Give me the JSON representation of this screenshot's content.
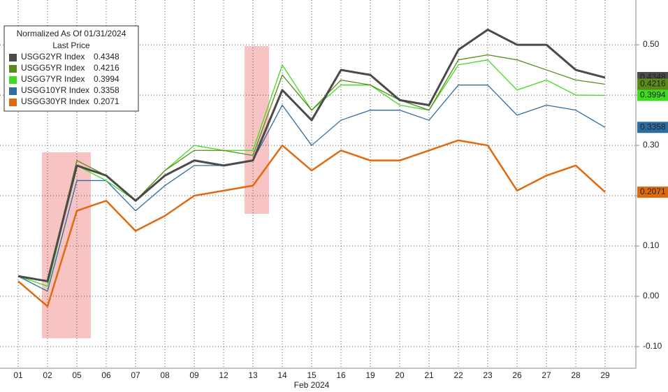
{
  "chart_data": {
    "type": "line",
    "legend_title": "Normalized As Of 01/31/2024",
    "legend_subtitle": "Last Price",
    "x_label": "Feb 2024",
    "categories": [
      "01",
      "02",
      "05",
      "06",
      "07",
      "08",
      "09",
      "12",
      "13",
      "14",
      "15",
      "16",
      "19",
      "20",
      "21",
      "22",
      "23",
      "26",
      "27",
      "28",
      "29"
    ],
    "ylim": [
      -0.143,
      0.589
    ],
    "yticks": [
      {
        "value": -0.1,
        "label": "-0.10"
      },
      {
        "value": 0,
        "label": "0.00"
      },
      {
        "value": 0.1,
        "label": "0.10"
      },
      {
        "value": 0.2,
        "label": "0.20"
      },
      {
        "value": 0.3,
        "label": "0.30"
      },
      {
        "value": 0.4,
        "label": "0.40"
      },
      {
        "value": 0.5,
        "label": "0.50"
      }
    ],
    "grid": true,
    "legend": "upper left",
    "series": [
      {
        "name": "USGG2YR Index",
        "color": "#4a4a4a",
        "values": [
          0.04,
          0.03,
          0.26,
          0.24,
          0.19,
          0.24,
          0.27,
          0.26,
          0.27,
          0.41,
          0.35,
          0.45,
          0.44,
          0.39,
          0.38,
          0.49,
          0.53,
          0.5,
          0.5,
          0.45,
          0.4348
        ]
      },
      {
        "name": "USGG5YR Index",
        "color": "#5a8a1a",
        "values": [
          0.04,
          0.03,
          0.27,
          0.24,
          0.19,
          0.25,
          0.29,
          0.29,
          0.28,
          0.44,
          0.37,
          0.43,
          0.42,
          0.39,
          0.37,
          0.47,
          0.48,
          0.47,
          0.45,
          0.43,
          0.4216
        ]
      },
      {
        "name": "USGG7YR Index",
        "color": "#3fdc22",
        "values": [
          0.04,
          0.02,
          0.26,
          0.23,
          0.19,
          0.25,
          0.3,
          0.29,
          0.29,
          0.46,
          0.37,
          0.42,
          0.42,
          0.38,
          0.37,
          0.46,
          0.47,
          0.41,
          0.43,
          0.4,
          0.3994
        ]
      },
      {
        "name": "USGG10YR Index",
        "color": "#2e6da4",
        "values": [
          0.04,
          0.01,
          0.23,
          0.23,
          0.17,
          0.22,
          0.26,
          0.26,
          0.27,
          0.38,
          0.3,
          0.35,
          0.37,
          0.37,
          0.35,
          0.42,
          0.42,
          0.36,
          0.38,
          0.37,
          0.3358
        ]
      },
      {
        "name": "USGG30YR Index",
        "color": "#e06a10",
        "values": [
          0.03,
          -0.02,
          0.17,
          0.19,
          0.13,
          0.16,
          0.2,
          0.21,
          0.22,
          0.3,
          0.25,
          0.29,
          0.27,
          0.27,
          0.29,
          0.31,
          0.3,
          0.21,
          0.24,
          0.26,
          0.2071
        ]
      }
    ]
  }
}
